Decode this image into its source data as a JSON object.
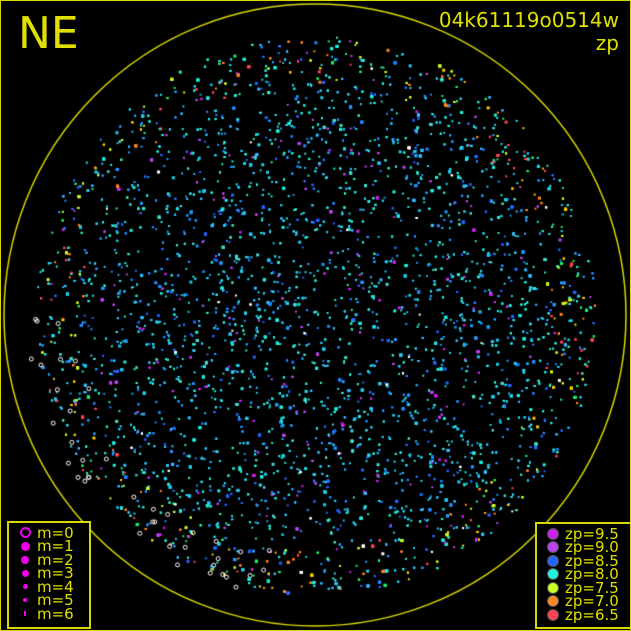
{
  "title": "NE",
  "observation_id": "04k61119o0514w",
  "color_mode": "zp",
  "colors": {
    "frame": "#d8d800",
    "horizon_circle": "#d8d800",
    "text": "#e0e000",
    "magnitude_symbol": "#ee00ee"
  },
  "magnitude_legend": [
    {
      "label": "m=0",
      "symbol": "open-circle"
    },
    {
      "label": "m=1",
      "symbol": "dot"
    },
    {
      "label": "m=2",
      "symbol": "dot"
    },
    {
      "label": "m=3",
      "symbol": "dot"
    },
    {
      "label": "m=4",
      "symbol": "dot"
    },
    {
      "label": "m=5",
      "symbol": "dot"
    },
    {
      "label": "m=6",
      "symbol": "dot"
    }
  ],
  "zp_legend": [
    {
      "label": "zp=9.5",
      "color": "#cc22ee"
    },
    {
      "label": "zp=9.0",
      "color": "#bb44ee"
    },
    {
      "label": "zp=8.5",
      "color": "#2266ff"
    },
    {
      "label": "zp=8.0",
      "color": "#22eedd"
    },
    {
      "label": "zp=7.5",
      "color": "#ccff22"
    },
    {
      "label": "zp=7.0",
      "color": "#ff8822"
    },
    {
      "label": "zp=6.5",
      "color": "#ff4455"
    }
  ]
}
